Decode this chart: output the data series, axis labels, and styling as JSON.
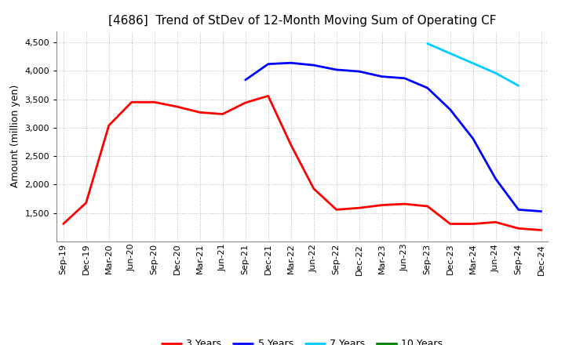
{
  "title": "[4686]  Trend of StDev of 12-Month Moving Sum of Operating CF",
  "ylabel": "Amount (million yen)",
  "ylim": [
    1000,
    4700
  ],
  "yticks": [
    1500,
    2000,
    2500,
    3000,
    3500,
    4000,
    4500
  ],
  "background_color": "#ffffff",
  "grid_color": "#b0b0b0",
  "title_fontsize": 11,
  "axis_label_fontsize": 9,
  "tick_fontsize": 8,
  "legend_fontsize": 9,
  "series": {
    "3 Years": {
      "color": "#ff0000",
      "x": [
        "Sep-19",
        "Dec-19",
        "Mar-20",
        "Jun-20",
        "Sep-20",
        "Dec-20",
        "Mar-21",
        "Jun-21",
        "Sep-21",
        "Dec-21",
        "Mar-22",
        "Jun-22",
        "Sep-22",
        "Dec-22",
        "Mar-23",
        "Jun-23",
        "Sep-23",
        "Dec-23",
        "Mar-24",
        "Jun-24",
        "Sep-24",
        "Dec-24"
      ],
      "y": [
        1310,
        1680,
        3040,
        3450,
        3450,
        3370,
        3270,
        3240,
        3440,
        3560,
        2700,
        1930,
        1560,
        1590,
        1640,
        1660,
        1620,
        1310,
        1310,
        1340,
        1230,
        1200
      ]
    },
    "5 Years": {
      "color": "#0000ff",
      "x": [
        "Sep-21",
        "Dec-21",
        "Mar-22",
        "Jun-22",
        "Sep-22",
        "Dec-22",
        "Mar-23",
        "Jun-23",
        "Sep-23",
        "Dec-23",
        "Mar-24",
        "Jun-24",
        "Sep-24",
        "Dec-24"
      ],
      "y": [
        3840,
        4120,
        4140,
        4100,
        4020,
        3990,
        3900,
        3870,
        3700,
        3320,
        2810,
        2100,
        1560,
        1530
      ]
    },
    "7 Years": {
      "color": "#00ccff",
      "x": [
        "Sep-23",
        "Jun-24",
        "Sep-24"
      ],
      "y": [
        4480,
        3960,
        3740
      ]
    },
    "10 Years": {
      "color": "#008000",
      "x": [],
      "y": []
    }
  },
  "x_labels": [
    "Sep-19",
    "Dec-19",
    "Mar-20",
    "Jun-20",
    "Sep-20",
    "Dec-20",
    "Mar-21",
    "Jun-21",
    "Sep-21",
    "Dec-21",
    "Mar-22",
    "Jun-22",
    "Sep-22",
    "Dec-22",
    "Mar-23",
    "Jun-23",
    "Sep-23",
    "Dec-23",
    "Mar-24",
    "Jun-24",
    "Sep-24",
    "Dec-24"
  ]
}
